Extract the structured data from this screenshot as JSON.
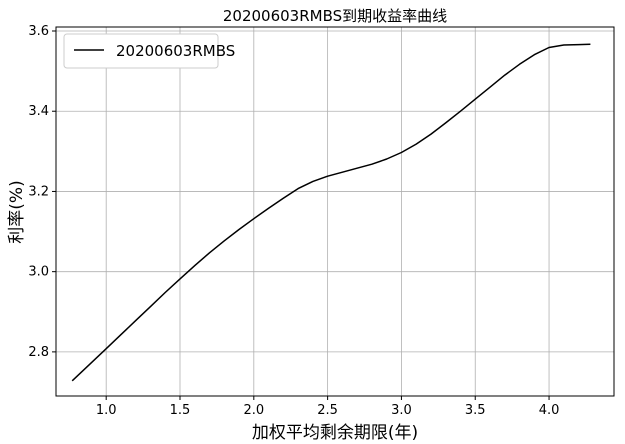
{
  "chart_data": {
    "type": "line",
    "title": "20200603RMBS到期收益率曲线",
    "xlabel": "加权平均剩余期限(年)",
    "ylabel": "利率(%)",
    "xlim": [
      0.66,
      4.44
    ],
    "ylim": [
      2.69,
      3.61
    ],
    "xticks": [
      1.0,
      1.5,
      2.0,
      2.5,
      3.0,
      3.5,
      4.0
    ],
    "xtick_labels": [
      "1.0",
      "1.5",
      "2.0",
      "2.5",
      "3.0",
      "3.5",
      "4.0"
    ],
    "yticks": [
      2.8,
      3.0,
      3.2,
      3.4,
      3.6
    ],
    "ytick_labels": [
      "2.8",
      "3.0",
      "3.2",
      "3.4",
      "3.6"
    ],
    "grid": true,
    "legend_position": "top-left",
    "series": [
      {
        "name": "20200603RMBS",
        "color": "#000000",
        "x": [
          0.77,
          0.9,
          1.0,
          1.1,
          1.2,
          1.3,
          1.4,
          1.5,
          1.6,
          1.7,
          1.8,
          1.9,
          2.0,
          2.1,
          2.2,
          2.3,
          2.4,
          2.5,
          2.6,
          2.7,
          2.8,
          2.9,
          3.0,
          3.1,
          3.2,
          3.3,
          3.4,
          3.5,
          3.6,
          3.7,
          3.8,
          3.9,
          4.0,
          4.1,
          4.2,
          4.28
        ],
        "y": [
          2.728,
          2.773,
          2.808,
          2.843,
          2.878,
          2.913,
          2.948,
          2.982,
          3.015,
          3.047,
          3.077,
          3.105,
          3.132,
          3.158,
          3.183,
          3.207,
          3.225,
          3.238,
          3.248,
          3.258,
          3.268,
          3.281,
          3.297,
          3.318,
          3.343,
          3.371,
          3.4,
          3.43,
          3.46,
          3.49,
          3.517,
          3.541,
          3.559,
          3.565,
          3.566,
          3.567
        ]
      }
    ]
  }
}
